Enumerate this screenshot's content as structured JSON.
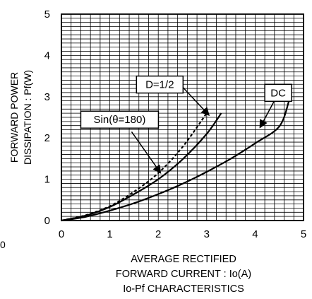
{
  "chart_data": {
    "type": "line",
    "title": "Io-Pf CHARACTERISTICS",
    "xlabel": [
      "AVERAGE RECTIFIED",
      "FORWARD CURRENT : Io(A)"
    ],
    "ylabel": [
      "FORWARD POWER",
      "DISSIPATION : Pf(W)"
    ],
    "xlim": [
      0,
      5
    ],
    "ylim": [
      0,
      5
    ],
    "x_ticks": [
      "0",
      "1",
      "2",
      "3",
      "4",
      "5"
    ],
    "y_ticks": [
      "0",
      "1",
      "2",
      "3",
      "4",
      "5"
    ],
    "grid": true,
    "series": [
      {
        "name": "DC",
        "style": "solid",
        "x": [
          0,
          0.5,
          1.0,
          1.5,
          2.0,
          2.5,
          3.0,
          3.5,
          4.0,
          4.5,
          4.7
        ],
        "y": [
          0,
          0.09,
          0.24,
          0.42,
          0.64,
          0.89,
          1.18,
          1.5,
          1.87,
          2.28,
          2.9
        ]
      },
      {
        "name": "Sin(θ=180)",
        "style": "solid",
        "x": [
          0,
          0.5,
          1.0,
          1.5,
          2.0,
          2.5,
          3.0,
          3.3
        ],
        "y": [
          0,
          0.12,
          0.33,
          0.64,
          1.0,
          1.48,
          2.1,
          2.6
        ]
      },
      {
        "name": "D=1/2",
        "style": "dashed",
        "x": [
          0,
          0.5,
          1.0,
          1.5,
          2.0,
          2.5,
          3.0
        ],
        "y": [
          0,
          0.13,
          0.35,
          0.7,
          1.15,
          1.78,
          2.6
        ]
      }
    ],
    "annotations": [
      {
        "text": "D=1/2",
        "points_to_series": "D=1/2"
      },
      {
        "text": "Sin(θ=180)",
        "points_to_series": "Sin(θ=180)"
      },
      {
        "text": "DC",
        "points_to_series": "DC"
      }
    ]
  },
  "stray_label": "0"
}
